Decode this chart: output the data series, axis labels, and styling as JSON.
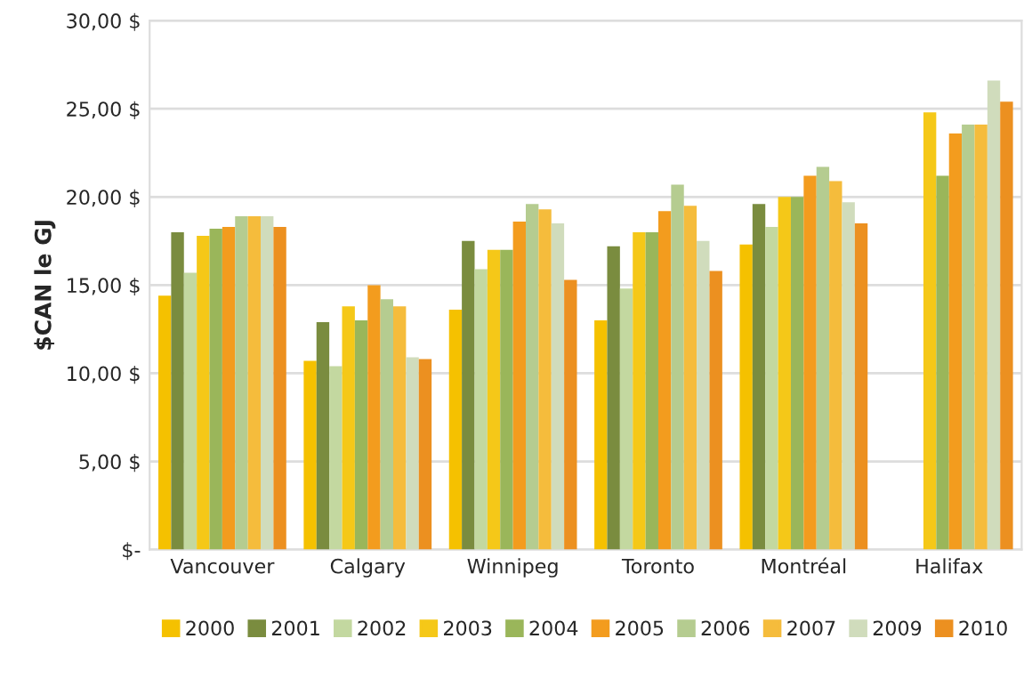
{
  "chart_data": {
    "type": "bar",
    "ylabel": "$CAN le GJ",
    "categories": [
      "Vancouver",
      "Calgary",
      "Winnipeg",
      "Toronto",
      "Montréal",
      "Halifax"
    ],
    "series": [
      {
        "name": "2000",
        "color": "#f5c100",
        "values": [
          14.4,
          10.7,
          13.6,
          13.0,
          17.3,
          null
        ]
      },
      {
        "name": "2001",
        "color": "#7a8c3f",
        "values": [
          18.0,
          12.9,
          17.5,
          17.2,
          19.6,
          null
        ]
      },
      {
        "name": "2002",
        "color": "#c3d8a0",
        "values": [
          15.7,
          10.4,
          15.9,
          14.8,
          18.3,
          null
        ]
      },
      {
        "name": "2003",
        "color": "#f5c818",
        "values": [
          17.8,
          13.8,
          17.0,
          18.0,
          20.0,
          24.8
        ]
      },
      {
        "name": "2004",
        "color": "#9ab65a",
        "values": [
          18.2,
          13.0,
          17.0,
          18.0,
          20.0,
          21.2
        ]
      },
      {
        "name": "2005",
        "color": "#f39c1e",
        "values": [
          18.3,
          15.0,
          18.6,
          19.2,
          21.2,
          23.6
        ]
      },
      {
        "name": "2006",
        "color": "#b5cc90",
        "values": [
          18.9,
          14.2,
          19.6,
          20.7,
          21.7,
          24.1
        ]
      },
      {
        "name": "2007",
        "color": "#f5bc3c",
        "values": [
          18.9,
          13.8,
          19.3,
          19.5,
          20.9,
          24.1
        ]
      },
      {
        "name": "2009",
        "color": "#d0dcbc",
        "values": [
          18.9,
          10.9,
          18.5,
          17.5,
          19.7,
          26.6
        ]
      },
      {
        "name": "2010",
        "color": "#ec9020",
        "values": [
          18.3,
          10.8,
          15.3,
          15.8,
          18.5,
          25.4
        ]
      }
    ],
    "ylim": [
      0,
      30
    ],
    "yticks": [
      {
        "value": 0,
        "label": "$-"
      },
      {
        "value": 5,
        "label": "5,00 $"
      },
      {
        "value": 10,
        "label": "10,00 $"
      },
      {
        "value": 15,
        "label": "15,00 $"
      },
      {
        "value": 20,
        "label": "20,00 $"
      },
      {
        "value": 25,
        "label": "25,00 $"
      },
      {
        "value": 30,
        "label": "30,00 $"
      }
    ],
    "grid": "y",
    "legend": "bottom"
  }
}
